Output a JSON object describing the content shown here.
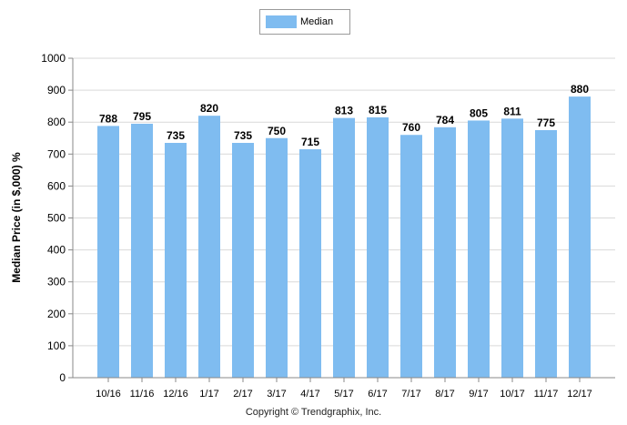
{
  "legend": {
    "label": "Median",
    "color": "#7fbcf0"
  },
  "footer": "Copyright © Trendgraphix, Inc.",
  "chart_data": {
    "type": "bar",
    "ylabel": "Median Price (in $,000) %",
    "ylim": [
      0,
      1000
    ],
    "yticks": [
      0,
      100,
      200,
      300,
      400,
      500,
      600,
      700,
      800,
      900,
      1000
    ],
    "grid": true,
    "legend_position": "top-center",
    "categories": [
      "10/16",
      "11/16",
      "12/16",
      "1/17",
      "2/17",
      "3/17",
      "4/17",
      "5/17",
      "6/17",
      "7/17",
      "8/17",
      "9/17",
      "10/17",
      "11/17",
      "12/17"
    ],
    "series": [
      {
        "name": "Median",
        "values": [
          788,
          795,
          735,
          820,
          735,
          750,
          715,
          813,
          815,
          760,
          784,
          805,
          811,
          775,
          880
        ]
      }
    ]
  }
}
